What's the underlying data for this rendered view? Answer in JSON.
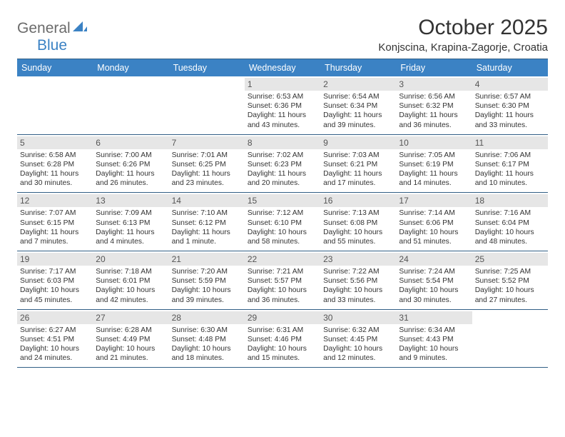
{
  "logo": {
    "word1": "General",
    "word2": "Blue",
    "shape_color": "#3b82c4"
  },
  "title": "October 2025",
  "location": "Konjscina, Krapina-Zagorje, Croatia",
  "colors": {
    "header_bg": "#3b82c4",
    "header_text": "#ffffff",
    "rule": "#325f86",
    "daynum_bg": "#e6e6e6",
    "daynum_text": "#555555",
    "body_text": "#333333",
    "logo_gray": "#6b6b6b"
  },
  "day_headers": [
    "Sunday",
    "Monday",
    "Tuesday",
    "Wednesday",
    "Thursday",
    "Friday",
    "Saturday"
  ],
  "weeks": [
    [
      null,
      null,
      null,
      {
        "n": "1",
        "sr": "6:53 AM",
        "ss": "6:36 PM",
        "dl": "11 hours and 43 minutes."
      },
      {
        "n": "2",
        "sr": "6:54 AM",
        "ss": "6:34 PM",
        "dl": "11 hours and 39 minutes."
      },
      {
        "n": "3",
        "sr": "6:56 AM",
        "ss": "6:32 PM",
        "dl": "11 hours and 36 minutes."
      },
      {
        "n": "4",
        "sr": "6:57 AM",
        "ss": "6:30 PM",
        "dl": "11 hours and 33 minutes."
      }
    ],
    [
      {
        "n": "5",
        "sr": "6:58 AM",
        "ss": "6:28 PM",
        "dl": "11 hours and 30 minutes."
      },
      {
        "n": "6",
        "sr": "7:00 AM",
        "ss": "6:26 PM",
        "dl": "11 hours and 26 minutes."
      },
      {
        "n": "7",
        "sr": "7:01 AM",
        "ss": "6:25 PM",
        "dl": "11 hours and 23 minutes."
      },
      {
        "n": "8",
        "sr": "7:02 AM",
        "ss": "6:23 PM",
        "dl": "11 hours and 20 minutes."
      },
      {
        "n": "9",
        "sr": "7:03 AM",
        "ss": "6:21 PM",
        "dl": "11 hours and 17 minutes."
      },
      {
        "n": "10",
        "sr": "7:05 AM",
        "ss": "6:19 PM",
        "dl": "11 hours and 14 minutes."
      },
      {
        "n": "11",
        "sr": "7:06 AM",
        "ss": "6:17 PM",
        "dl": "11 hours and 10 minutes."
      }
    ],
    [
      {
        "n": "12",
        "sr": "7:07 AM",
        "ss": "6:15 PM",
        "dl": "11 hours and 7 minutes."
      },
      {
        "n": "13",
        "sr": "7:09 AM",
        "ss": "6:13 PM",
        "dl": "11 hours and 4 minutes."
      },
      {
        "n": "14",
        "sr": "7:10 AM",
        "ss": "6:12 PM",
        "dl": "11 hours and 1 minute."
      },
      {
        "n": "15",
        "sr": "7:12 AM",
        "ss": "6:10 PM",
        "dl": "10 hours and 58 minutes."
      },
      {
        "n": "16",
        "sr": "7:13 AM",
        "ss": "6:08 PM",
        "dl": "10 hours and 55 minutes."
      },
      {
        "n": "17",
        "sr": "7:14 AM",
        "ss": "6:06 PM",
        "dl": "10 hours and 51 minutes."
      },
      {
        "n": "18",
        "sr": "7:16 AM",
        "ss": "6:04 PM",
        "dl": "10 hours and 48 minutes."
      }
    ],
    [
      {
        "n": "19",
        "sr": "7:17 AM",
        "ss": "6:03 PM",
        "dl": "10 hours and 45 minutes."
      },
      {
        "n": "20",
        "sr": "7:18 AM",
        "ss": "6:01 PM",
        "dl": "10 hours and 42 minutes."
      },
      {
        "n": "21",
        "sr": "7:20 AM",
        "ss": "5:59 PM",
        "dl": "10 hours and 39 minutes."
      },
      {
        "n": "22",
        "sr": "7:21 AM",
        "ss": "5:57 PM",
        "dl": "10 hours and 36 minutes."
      },
      {
        "n": "23",
        "sr": "7:22 AM",
        "ss": "5:56 PM",
        "dl": "10 hours and 33 minutes."
      },
      {
        "n": "24",
        "sr": "7:24 AM",
        "ss": "5:54 PM",
        "dl": "10 hours and 30 minutes."
      },
      {
        "n": "25",
        "sr": "7:25 AM",
        "ss": "5:52 PM",
        "dl": "10 hours and 27 minutes."
      }
    ],
    [
      {
        "n": "26",
        "sr": "6:27 AM",
        "ss": "4:51 PM",
        "dl": "10 hours and 24 minutes."
      },
      {
        "n": "27",
        "sr": "6:28 AM",
        "ss": "4:49 PM",
        "dl": "10 hours and 21 minutes."
      },
      {
        "n": "28",
        "sr": "6:30 AM",
        "ss": "4:48 PM",
        "dl": "10 hours and 18 minutes."
      },
      {
        "n": "29",
        "sr": "6:31 AM",
        "ss": "4:46 PM",
        "dl": "10 hours and 15 minutes."
      },
      {
        "n": "30",
        "sr": "6:32 AM",
        "ss": "4:45 PM",
        "dl": "10 hours and 12 minutes."
      },
      {
        "n": "31",
        "sr": "6:34 AM",
        "ss": "4:43 PM",
        "dl": "10 hours and 9 minutes."
      },
      null
    ]
  ],
  "labels": {
    "sunrise": "Sunrise:",
    "sunset": "Sunset:",
    "daylight": "Daylight:"
  }
}
